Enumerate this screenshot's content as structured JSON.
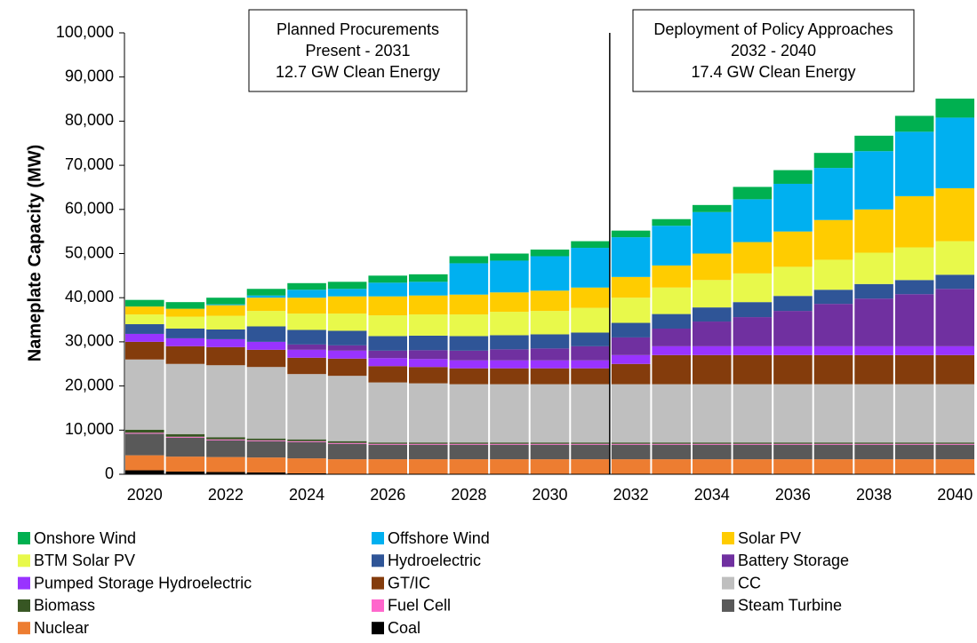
{
  "chart_data": {
    "type": "stacked_bar",
    "y_label": "Nameplate Capacity (MW)",
    "annotations": [
      {
        "lines": [
          "Planned Procurements",
          "Present - 2031",
          "12.7 GW Clean Energy"
        ]
      },
      {
        "lines": [
          "Deployment of Policy Approaches",
          "2032 - 2040",
          "17.4 GW Clean Energy"
        ]
      }
    ],
    "categories": [
      2020,
      null,
      2022,
      null,
      2024,
      null,
      2026,
      null,
      2028,
      null,
      2030,
      null,
      2032,
      null,
      2034,
      null,
      2036,
      null,
      2038,
      null,
      2040
    ],
    "ylim": [
      0,
      100000
    ],
    "yticks": [
      0,
      {
        "value": 10000,
        "label": "10,000"
      },
      {
        "value": 20000,
        "label": "20,000"
      },
      {
        "value": 30000,
        "label": "30,000"
      },
      {
        "value": 40000,
        "label": "40,000"
      },
      {
        "value": 50000,
        "label": "50,000"
      },
      {
        "value": 60000,
        "label": "60,000"
      },
      {
        "value": 70000,
        "label": "70,000"
      },
      {
        "value": 80000,
        "label": "80,000"
      },
      {
        "value": 90000,
        "label": "90,000"
      },
      {
        "value": 100000,
        "label": "100,000"
      }
    ],
    "series": [
      {
        "name": "Onshore Wind",
        "color": "#00b050",
        "values": [
          1500,
          1500,
          1500,
          1500,
          1500,
          1600,
          1600,
          1700,
          1600,
          1600,
          1500,
          1500,
          1500,
          1500,
          1600,
          2800,
          3100,
          3400,
          3500,
          3600,
          4300
        ]
      },
      {
        "name": "Offshore Wind",
        "color": "#00b0f0",
        "values": [
          0,
          0,
          200,
          500,
          1800,
          1700,
          3100,
          3100,
          7100,
          7200,
          7800,
          9000,
          9000,
          9000,
          9400,
          9700,
          10800,
          11800,
          13200,
          14600,
          16000
        ]
      },
      {
        "name": "Solar PV",
        "color": "#ffcc00",
        "values": [
          1800,
          1800,
          2400,
          3000,
          3600,
          3900,
          4300,
          4300,
          4500,
          4400,
          4600,
          4600,
          4700,
          5000,
          6000,
          7100,
          8000,
          9000,
          9800,
          11600,
          12000
        ]
      },
      {
        "name": "BTM Solar PV",
        "color": "#e8f94b",
        "values": [
          2200,
          2700,
          3100,
          3500,
          3700,
          3900,
          4700,
          4800,
          4900,
          5300,
          5300,
          5600,
          5700,
          6000,
          6200,
          6500,
          6600,
          6800,
          7100,
          7400,
          7600
        ]
      },
      {
        "name": "Hydroelectric",
        "color": "#2f5597",
        "values": [
          2200,
          2200,
          2200,
          3500,
          3300,
          3300,
          3300,
          3300,
          3300,
          3200,
          3200,
          3100,
          3300,
          3300,
          3200,
          3400,
          3400,
          3200,
          3300,
          3200,
          3200
        ]
      },
      {
        "name": "Battery Storage",
        "color": "#7030a0",
        "values": [
          0,
          0,
          0,
          0,
          1200,
          1200,
          1700,
          2000,
          2200,
          2500,
          2700,
          3200,
          4000,
          4000,
          5600,
          6600,
          8000,
          9600,
          10800,
          11800,
          13000
        ]
      },
      {
        "name": "Pumped Storage Hydroelectric",
        "color": "#9933ff",
        "values": [
          1800,
          1800,
          1800,
          1800,
          1800,
          1800,
          1800,
          1800,
          1800,
          1800,
          1800,
          1800,
          2000,
          2000,
          2000,
          2000,
          2000,
          2000,
          2000,
          2000,
          2000
        ]
      },
      {
        "name": "GT/IC",
        "color": "#843c0c",
        "values": [
          4000,
          4000,
          4100,
          3900,
          3700,
          3900,
          3700,
          3700,
          3600,
          3600,
          3600,
          3600,
          4600,
          6600,
          6600,
          6600,
          6600,
          6600,
          6600,
          6600,
          6600
        ]
      },
      {
        "name": "CC",
        "color": "#bfbfbf",
        "values": [
          15900,
          15900,
          16300,
          16200,
          14800,
          14800,
          13600,
          13400,
          13200,
          13200,
          13200,
          13200,
          13200,
          13200,
          13200,
          13200,
          13200,
          13200,
          13200,
          13200,
          13200
        ]
      },
      {
        "name": "Biomass",
        "color": "#375623",
        "values": [
          700,
          600,
          500,
          400,
          400,
          400,
          300,
          300,
          300,
          300,
          300,
          300,
          300,
          300,
          300,
          300,
          300,
          300,
          300,
          300,
          300
        ]
      },
      {
        "name": "Fuel Cell",
        "color": "#ff66cc",
        "values": [
          200,
          200,
          200,
          200,
          200,
          200,
          200,
          200,
          200,
          200,
          200,
          200,
          200,
          200,
          200,
          200,
          200,
          200,
          200,
          200,
          200
        ]
      },
      {
        "name": "Steam Turbine",
        "color": "#595959",
        "values": [
          4900,
          4300,
          3800,
          3700,
          3700,
          3500,
          3300,
          3300,
          3300,
          3300,
          3300,
          3300,
          3300,
          3300,
          3300,
          3300,
          3300,
          3300,
          3300,
          3300,
          3300
        ]
      },
      {
        "name": "Nuclear",
        "color": "#ed7d31",
        "values": [
          3400,
          3400,
          3400,
          3400,
          3400,
          3400,
          3400,
          3400,
          3400,
          3400,
          3400,
          3400,
          3400,
          3400,
          3400,
          3400,
          3400,
          3400,
          3400,
          3400,
          3400
        ]
      },
      {
        "name": "Coal",
        "color": "#000000",
        "values": [
          900,
          600,
          500,
          400,
          200,
          0,
          0,
          0,
          0,
          0,
          0,
          0,
          0,
          0,
          0,
          0,
          0,
          0,
          0,
          0,
          0
        ]
      }
    ]
  }
}
